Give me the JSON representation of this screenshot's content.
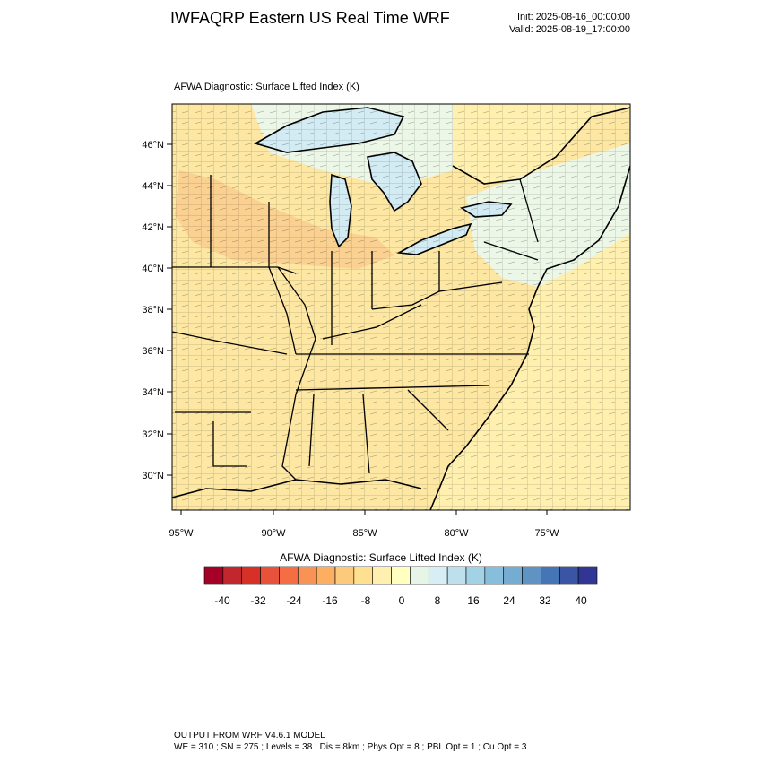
{
  "header": {
    "title": "IWFAQRP Eastern US Real Time WRF",
    "init": "Init: 2025-08-16_00:00:00",
    "valid": "Valid: 2025-08-19_17:00:00"
  },
  "map": {
    "title": "AFWA Diagnostic: Surface Lifted Index   (K)",
    "lat_labels": [
      "46°N",
      "44°N",
      "42°N",
      "40°N",
      "38°N",
      "36°N",
      "34°N",
      "32°N",
      "30°N"
    ],
    "lon_labels": [
      "95°W",
      "90°W",
      "85°W",
      "80°W",
      "75°W"
    ],
    "colors": {
      "water": "#d3ebf3",
      "land_warm": "#fde7a3",
      "land_neutral": "#fef4c0",
      "land_cool": "#ecf7e7",
      "hot_core": "#f9c98b",
      "ocean": "#fff0b0"
    }
  },
  "colorbar": {
    "title": "AFWA Diagnostic: Surface Lifted Index  (K)",
    "labels": [
      "-40",
      "-32",
      "-24",
      "-16",
      "-8",
      "0",
      "8",
      "16",
      "24",
      "32",
      "40"
    ],
    "colors": [
      "#a50026",
      "#c1272d",
      "#d73027",
      "#e8523a",
      "#f46d43",
      "#f99355",
      "#fdae61",
      "#fdc97a",
      "#fee090",
      "#fff0b0",
      "#ffffbf",
      "#e6f5e6",
      "#d7eef4",
      "#bde0ec",
      "#a3d2e5",
      "#86bedb",
      "#74add1",
      "#5f93c4",
      "#4575b4",
      "#3a55a4",
      "#313695"
    ]
  },
  "footer": {
    "line1": "OUTPUT FROM WRF V4.6.1 MODEL",
    "line2": "WE = 310 ; SN = 275 ; Levels = 38 ; Dis = 8km ; Phys Opt = 8 ; PBL Opt = 1 ; Cu Opt = 3"
  }
}
